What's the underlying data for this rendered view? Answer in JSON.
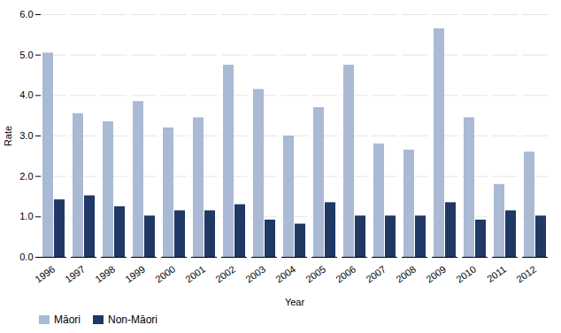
{
  "chart_data": {
    "type": "bar",
    "categories": [
      "1996",
      "1997",
      "1998",
      "1999",
      "2000",
      "2001",
      "2002",
      "2003",
      "2004",
      "2005",
      "2006",
      "2007",
      "2008",
      "2009",
      "2010",
      "2011",
      "2012"
    ],
    "series": [
      {
        "name": "Māori",
        "color": "#aab9d4",
        "values": [
          5.05,
          3.55,
          3.35,
          3.85,
          3.2,
          3.45,
          4.75,
          4.15,
          3.0,
          3.7,
          4.75,
          2.8,
          2.65,
          5.65,
          3.45,
          1.8,
          2.6
        ]
      },
      {
        "name": "Non-Māori",
        "color": "#1f3864",
        "values": [
          1.42,
          1.52,
          1.25,
          1.02,
          1.15,
          1.15,
          1.3,
          0.92,
          0.82,
          1.35,
          1.02,
          1.02,
          1.02,
          1.35,
          0.92,
          1.15,
          1.02
        ]
      }
    ],
    "xlabel": "Year",
    "ylabel": "Rate",
    "ylim": [
      0.0,
      6.0
    ],
    "yticks": [
      {
        "value": 0,
        "label": "0.0"
      },
      {
        "value": 1,
        "label": "1.0"
      },
      {
        "value": 2,
        "label": "2.0"
      },
      {
        "value": 3,
        "label": "3.0"
      },
      {
        "value": 4,
        "label": "4.0"
      },
      {
        "value": 5,
        "label": "5.0"
      },
      {
        "value": 6,
        "label": "6.0"
      }
    ],
    "grid": true,
    "legend": "lower left"
  }
}
